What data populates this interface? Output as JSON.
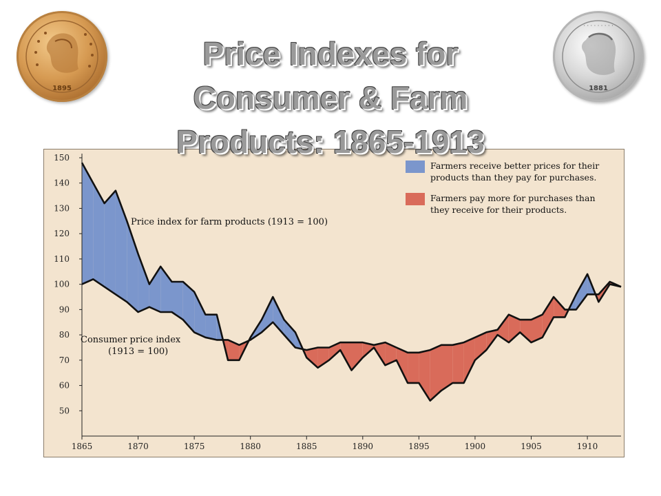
{
  "slide": {
    "title_lines": [
      "Price Indexes for",
      "Consumer & Farm",
      "Products:  1865-1913"
    ]
  },
  "coins": {
    "left": {
      "name": "gold-coin",
      "year": "1895"
    },
    "right": {
      "name": "silver-coin",
      "year": "1881"
    }
  },
  "colors": {
    "background": "#f3e4cf",
    "farm_better": "#7b96cc",
    "farm_worse": "#d96b5a",
    "line": "#111111",
    "title": "#9a9a9a"
  },
  "chart_data": {
    "type": "area",
    "xlim": [
      1865,
      1913
    ],
    "ylim": [
      40,
      150
    ],
    "x_ticks": [
      1865,
      1870,
      1875,
      1880,
      1885,
      1890,
      1895,
      1900,
      1905,
      1910
    ],
    "y_ticks": [
      50,
      60,
      70,
      80,
      90,
      100,
      110,
      120,
      130,
      140,
      150
    ],
    "x": [
      1865,
      1866,
      1867,
      1868,
      1869,
      1870,
      1871,
      1872,
      1873,
      1874,
      1875,
      1876,
      1877,
      1878,
      1879,
      1880,
      1881,
      1882,
      1883,
      1884,
      1885,
      1886,
      1887,
      1888,
      1889,
      1890,
      1891,
      1892,
      1893,
      1894,
      1895,
      1896,
      1897,
      1898,
      1899,
      1900,
      1901,
      1902,
      1903,
      1904,
      1905,
      1906,
      1907,
      1908,
      1909,
      1910,
      1911,
      1912,
      1913
    ],
    "series": [
      {
        "name": "Price index for farm products (1913 = 100)",
        "values": [
          148,
          140,
          132,
          137,
          125,
          112,
          100,
          107,
          101,
          101,
          97,
          88,
          88,
          70,
          70,
          79,
          86,
          95,
          86,
          81,
          71,
          67,
          70,
          74,
          66,
          71,
          75,
          68,
          70,
          61,
          61,
          54,
          58,
          61,
          61,
          70,
          74,
          80,
          77,
          81,
          77,
          79,
          87,
          87,
          96,
          104,
          93,
          100,
          99
        ]
      },
      {
        "name": "Consumer price index (1913 = 100)",
        "values": [
          100,
          102,
          99,
          96,
          93,
          89,
          91,
          89,
          89,
          86,
          81,
          79,
          78,
          78,
          76,
          78,
          81,
          85,
          80,
          75,
          74,
          75,
          75,
          77,
          77,
          77,
          76,
          77,
          75,
          73,
          73,
          74,
          76,
          76,
          77,
          79,
          81,
          82,
          88,
          86,
          86,
          88,
          95,
          90,
          90,
          96,
          96,
          101,
          99
        ]
      }
    ],
    "annotations": {
      "farm_label": "Price index for farm products (1913 = 100)",
      "cpi_label_line1": "Consumer price index",
      "cpi_label_line2": "(1913 = 100)"
    },
    "legend": {
      "placement": "top-right",
      "items": [
        {
          "color": "#7b96cc",
          "lines": [
            "Farmers receive better prices for their",
            "products than they pay for purchases."
          ]
        },
        {
          "color": "#d96b5a",
          "lines": [
            "Farmers pay more for purchases than",
            "they receive for their products."
          ]
        }
      ]
    },
    "grid": false
  }
}
